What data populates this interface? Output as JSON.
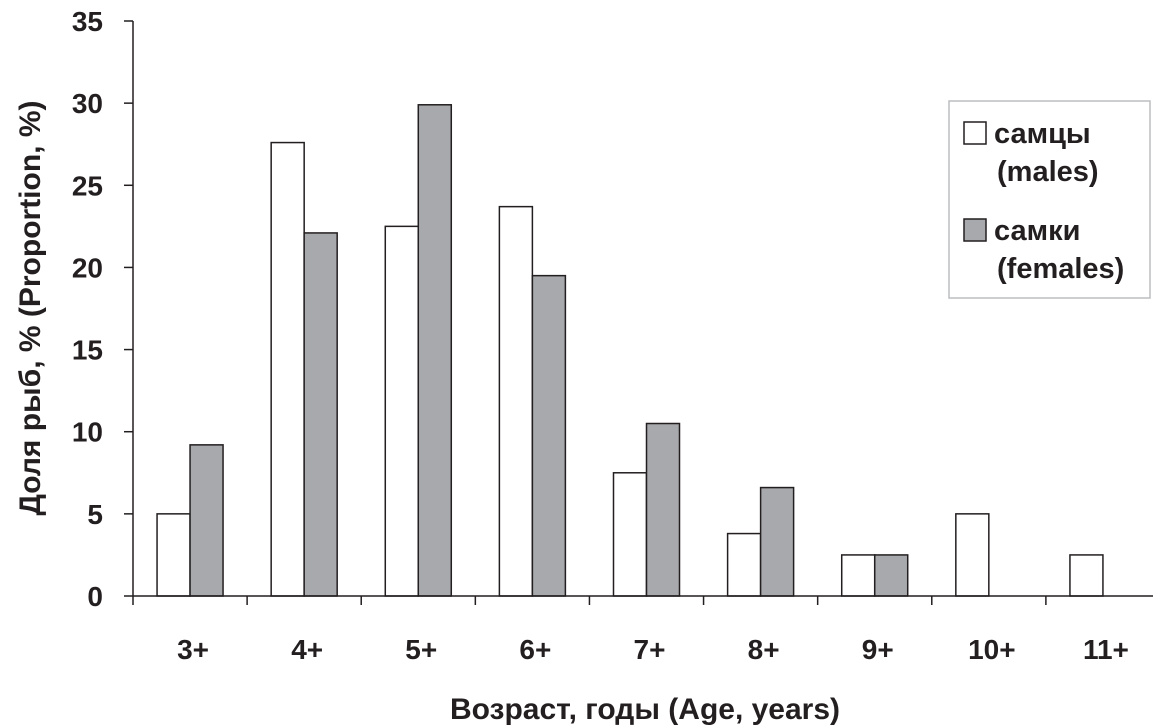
{
  "chart_data": {
    "type": "bar",
    "title": "",
    "xlabel": "Возраст, годы  (Age, years)",
    "ylabel": "Доля рыб, % (Proportion, %)",
    "ylim": [
      0,
      35
    ],
    "yticks": [
      "0",
      "5",
      "10",
      "15",
      "20",
      "25",
      "30",
      "35"
    ],
    "grid": false,
    "legend_position": "top-right",
    "categories": [
      "3+",
      "4+",
      "5+",
      "6+",
      "7+",
      "8+",
      "9+",
      "10+",
      "11+"
    ],
    "series": [
      {
        "name": "самцы (males)",
        "legend_lines": [
          "самцы",
          "(males)"
        ],
        "color": "#ffffff",
        "values": [
          5.0,
          27.6,
          22.5,
          23.7,
          7.5,
          3.8,
          2.5,
          5.0,
          2.5
        ]
      },
      {
        "name": "самки (females)",
        "legend_lines": [
          "самки",
          "(females)"
        ],
        "color": "#a7a9ac",
        "values": [
          9.2,
          22.1,
          29.9,
          19.5,
          10.5,
          6.6,
          2.5,
          0,
          0
        ]
      }
    ]
  }
}
